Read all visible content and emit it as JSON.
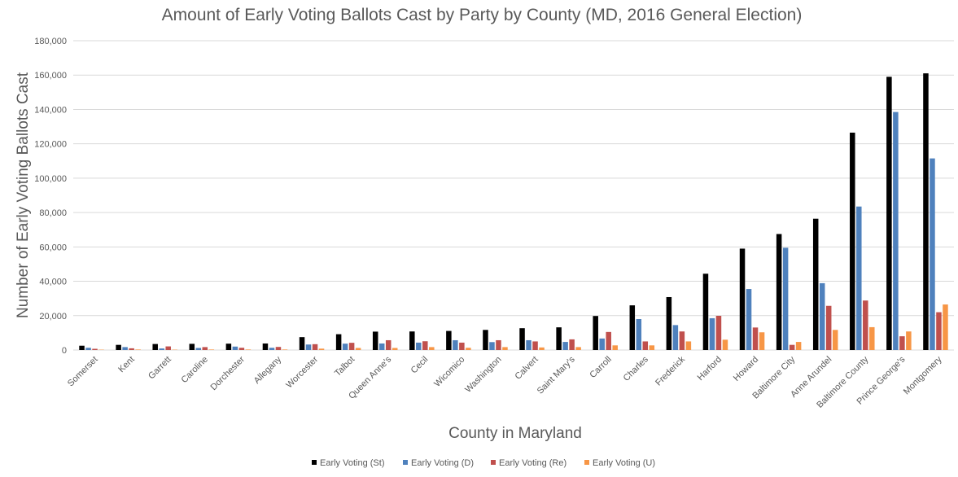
{
  "chart_data": {
    "type": "bar",
    "title": "Amount of Early Voting Ballots Cast  by Party by County (MD, 2016 General Election)",
    "xlabel": "County in Maryland",
    "ylabel": "Number of Early Voting Ballots Cast",
    "ylim": [
      0,
      180000
    ],
    "yticks": [
      "0",
      "20,000",
      "40,000",
      "60,000",
      "80,000",
      "100,000",
      "120,000",
      "140,000",
      "160,000",
      "180,000"
    ],
    "grid": true,
    "legend_position": "bottom",
    "categories": [
      "Somerset",
      "Kent",
      "Garrett",
      "Caroline",
      "Dorchester",
      "Allegany",
      "Worcester",
      "Talbot",
      "Queen Anne's",
      "Cecil",
      "Wicomico",
      "Washington",
      "Calvert",
      "Saint Mary's",
      "Carroll",
      "Charles",
      "Frederick",
      "Harford",
      "Howard",
      "Baltimore City",
      "Anne Arundel",
      "Baltimore County",
      "Prince George's",
      "Montgomery"
    ],
    "series": [
      {
        "name": "Early Voting (St)",
        "color": "#000000",
        "values": [
          2500,
          3000,
          3500,
          3600,
          3700,
          3800,
          7500,
          9200,
          10700,
          10800,
          11100,
          11700,
          12700,
          13200,
          19800,
          26000,
          30800,
          44400,
          59000,
          67500,
          76400,
          126500,
          159000,
          161000
        ]
      },
      {
        "name": "Early Voting (D)",
        "color": "#4f81bd",
        "values": [
          1300,
          1700,
          900,
          1200,
          2000,
          1300,
          3200,
          3700,
          3800,
          4300,
          5700,
          4600,
          5700,
          4700,
          6700,
          18000,
          14500,
          18500,
          35500,
          59500,
          38900,
          83500,
          138500,
          111500
        ]
      },
      {
        "name": "Early Voting (Re)",
        "color": "#c0504d",
        "values": [
          700,
          1000,
          2100,
          1700,
          1300,
          1800,
          3400,
          4200,
          5700,
          5100,
          4300,
          5700,
          5000,
          6200,
          10500,
          5000,
          10800,
          19900,
          13100,
          3000,
          25700,
          28800,
          8000,
          22000
        ]
      },
      {
        "name": "Early Voting (U)",
        "color": "#f79646",
        "values": [
          200,
          300,
          200,
          300,
          300,
          300,
          800,
          1200,
          1200,
          1700,
          1300,
          1700,
          1500,
          1700,
          2700,
          2700,
          5000,
          6000,
          10300,
          4700,
          11700,
          13300,
          10800,
          26500
        ]
      }
    ]
  }
}
